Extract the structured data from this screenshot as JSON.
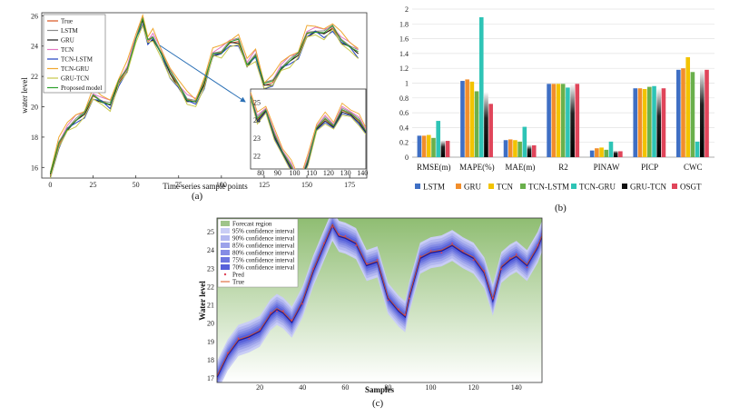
{
  "captions": {
    "a": "(a)",
    "b": "(b)",
    "c": "(c)"
  },
  "chart_data": [
    {
      "type": "line",
      "panel": "(a)",
      "xlabel": "Time series sample points",
      "ylabel": "water level",
      "xlim": [
        -5,
        185
      ],
      "ylim": [
        15.3,
        26.2
      ],
      "xticks": [
        0,
        25,
        50,
        75,
        100,
        125,
        150,
        175
      ],
      "yticks": [
        16,
        18,
        20,
        22,
        24,
        26
      ],
      "x": [
        0,
        5,
        10,
        15,
        20,
        25,
        30,
        35,
        40,
        45,
        50,
        54,
        57,
        60,
        65,
        70,
        75,
        80,
        85,
        90,
        95,
        100,
        105,
        110,
        115,
        120,
        125,
        130,
        135,
        140,
        145,
        150,
        155,
        160,
        165,
        170,
        175,
        180
      ],
      "true": [
        15.5,
        17.5,
        18.6,
        19.1,
        19.5,
        20.7,
        20.4,
        20.1,
        21.6,
        22.5,
        24.5,
        25.7,
        24.3,
        24.6,
        23.5,
        22.2,
        21.4,
        20.5,
        20.3,
        21.5,
        23.5,
        23.6,
        24.2,
        24.3,
        22.8,
        23.4,
        21.4,
        21.6,
        22.6,
        23.0,
        23.4,
        24.8,
        25.0,
        24.8,
        25.2,
        24.4,
        24.0,
        23.5
      ],
      "series": [
        {
          "name": "True",
          "color": "#d9531e",
          "offset": 0.0
        },
        {
          "name": "LSTM",
          "color": "#8c8c8c",
          "offset": 0.15
        },
        {
          "name": "GRU",
          "color": "#1a1a1a",
          "offset": -0.1
        },
        {
          "name": "TCN",
          "color": "#e377c2",
          "offset": 0.25
        },
        {
          "name": "TCN-LSTM",
          "color": "#1f3fbf",
          "offset": -0.2
        },
        {
          "name": "TCN-GRU",
          "color": "#f0a830",
          "offset": 0.45
        },
        {
          "name": "GRU-TCN",
          "color": "#c8c84a",
          "offset": -0.3
        },
        {
          "name": "Proposed model",
          "color": "#2ca02c",
          "offset": 0.05
        }
      ],
      "inset": {
        "xticks": [
          90,
          100,
          110,
          120,
          130,
          140,
          150
        ],
        "xticklabels": [
          "80",
          "90",
          "100",
          "110",
          "120",
          "130",
          "140"
        ],
        "yticks": [
          22,
          23,
          24,
          25
        ]
      }
    },
    {
      "type": "bar",
      "panel": "(b)",
      "categories": [
        "RMSE(m)",
        "MAPE(%)",
        "MAE(m)",
        "R2",
        "PINAW",
        "PICP",
        "CWC"
      ],
      "ylim": [
        0,
        2
      ],
      "yticks": [
        "0",
        "0.2",
        "0.4",
        "0.6",
        "0.8",
        "1",
        "1.2",
        "1.4",
        "1.6",
        "1.8",
        "2"
      ],
      "series": [
        {
          "name": "LSTM",
          "color": "#3f6fc4",
          "values": [
            0.29,
            1.03,
            0.23,
            0.99,
            0.09,
            0.93,
            1.18
          ]
        },
        {
          "name": "GRU",
          "color": "#f28e2b",
          "values": [
            0.29,
            1.05,
            0.24,
            0.99,
            0.12,
            0.93,
            1.2
          ]
        },
        {
          "name": "TCN",
          "color": "#f2c300",
          "values": [
            0.3,
            1.02,
            0.23,
            0.99,
            0.13,
            0.92,
            1.35
          ]
        },
        {
          "name": "TCN-LSTM",
          "color": "#6ab04c",
          "values": [
            0.26,
            0.89,
            0.21,
            0.99,
            0.1,
            0.95,
            1.15
          ]
        },
        {
          "name": "TCN-GRU",
          "color": "#2ec4b6",
          "values": [
            0.49,
            1.89,
            0.41,
            0.94,
            0.21,
            0.96,
            0.21
          ]
        },
        {
          "name": "GRU-TCN",
          "color": "#111111",
          "values": [
            0.23,
            0.88,
            0.17,
            0.99,
            0.09,
            0.93,
            1.19
          ]
        },
        {
          "name": "OSGT",
          "color": "#e0455a",
          "values": [
            0.22,
            0.72,
            0.16,
            0.99,
            0.08,
            0.93,
            1.18
          ]
        }
      ]
    },
    {
      "type": "area",
      "panel": "(c)",
      "xlabel": "Samples",
      "ylabel": "Water level",
      "xlim": [
        0,
        152
      ],
      "ylim": [
        16.8,
        25.8
      ],
      "xticks": [
        20,
        40,
        60,
        80,
        100,
        120,
        140
      ],
      "yticks": [
        17,
        18,
        19,
        20,
        21,
        22,
        23,
        24,
        25
      ],
      "x": [
        0,
        5,
        10,
        15,
        20,
        25,
        28,
        31,
        35,
        40,
        45,
        50,
        54,
        57,
        60,
        65,
        70,
        75,
        80,
        85,
        88,
        90,
        95,
        100,
        105,
        110,
        115,
        120,
        125,
        129,
        133,
        137,
        140,
        145,
        150,
        152
      ],
      "y": [
        17.1,
        18.3,
        19.1,
        19.3,
        19.6,
        20.5,
        20.8,
        20.6,
        20.1,
        21.2,
        22.9,
        24.3,
        25.4,
        24.8,
        24.7,
        24.4,
        23.2,
        23.4,
        21.4,
        20.7,
        20.4,
        21.5,
        23.6,
        23.9,
        24.0,
        24.3,
        23.9,
        23.6,
        22.8,
        21.3,
        23.1,
        23.5,
        23.7,
        23.2,
        24.2,
        24.8
      ],
      "legend": [
        {
          "label": "Forecast region",
          "color": "#9fc48a"
        },
        {
          "label": "95% confidence interval",
          "color": "#c9cdf5"
        },
        {
          "label": "90% confidence interval",
          "color": "#b3b8f0"
        },
        {
          "label": "85% confidence interval",
          "color": "#9ca2ea"
        },
        {
          "label": "80% confidence interval",
          "color": "#858ce5"
        },
        {
          "label": "75% confidence interval",
          "color": "#6d76df"
        },
        {
          "label": "70% confidence interval",
          "color": "#5660da"
        },
        {
          "label": "Pred",
          "color": "#e0455a"
        },
        {
          "label": "True",
          "color": "#d9531e"
        }
      ],
      "bands": [
        0.85,
        0.7,
        0.55,
        0.42,
        0.3,
        0.18
      ]
    }
  ]
}
